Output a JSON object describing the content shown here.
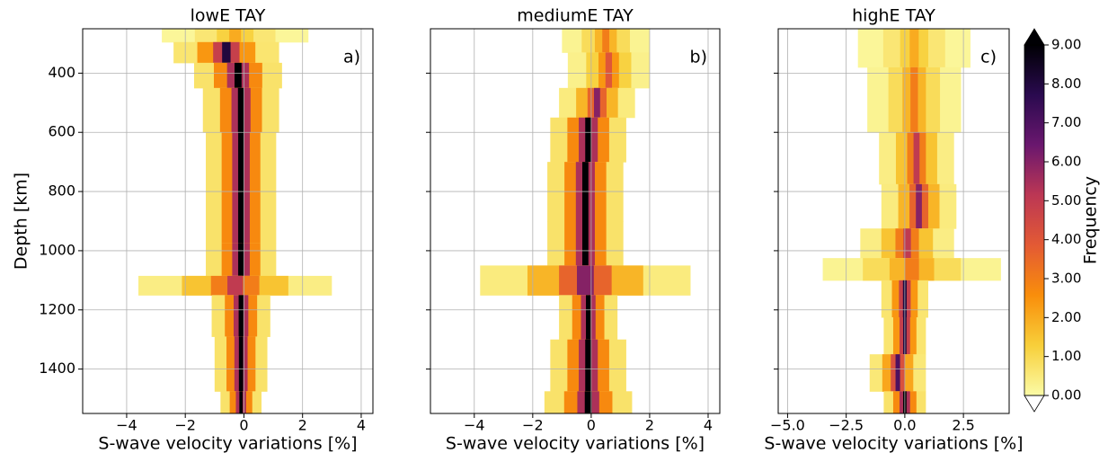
{
  "chart_data": [
    {
      "type": "density",
      "title": "lowE TAY",
      "tag": "a)",
      "xlabel": "S-wave velocity variations [%]",
      "ylabel": "Depth [km]",
      "xlim": [
        -5.5,
        4.4
      ],
      "xticks": [
        {
          "value": -4,
          "label": "−4"
        },
        {
          "value": -2,
          "label": "−2"
        },
        0,
        2,
        4
      ],
      "ylim": [
        250,
        1550
      ],
      "yticks": [
        400,
        600,
        800,
        1000,
        1200,
        1400
      ],
      "grid": true,
      "profile": {
        "depth": [
          260,
          330,
          400,
          500,
          700,
          900,
          1050,
          1120,
          1180,
          1400,
          1550
        ],
        "mode": [
          -0.3,
          -0.6,
          -0.2,
          -0.1,
          -0.1,
          -0.1,
          -0.1,
          -0.3,
          -0.1,
          -0.1,
          -0.1
        ],
        "spread": [
          2.5,
          1.8,
          1.5,
          1.3,
          1.2,
          1.2,
          1.2,
          3.3,
          1.0,
          0.9,
          0.7
        ],
        "peak": [
          2,
          8,
          9,
          9,
          9,
          9,
          9,
          5,
          9,
          9,
          9
        ]
      }
    },
    {
      "type": "density",
      "title": "mediumE TAY",
      "tag": "b)",
      "xlabel": "S-wave velocity variations [%]",
      "xlim": [
        -5.5,
        4.4
      ],
      "xticks": [
        {
          "value": -4,
          "label": "−4"
        },
        {
          "value": -2,
          "label": "−2"
        },
        0,
        2,
        4
      ],
      "ylim": [
        250,
        1550
      ],
      "yticks": [
        400,
        600,
        800,
        1000,
        1200,
        1400
      ],
      "grid": true,
      "profile": {
        "depth": [
          260,
          400,
          500,
          600,
          800,
          1000,
          1100,
          1200,
          1400,
          1550
        ],
        "mode": [
          0.5,
          0.6,
          0.2,
          -0.1,
          -0.2,
          -0.2,
          -0.2,
          -0.1,
          -0.1,
          -0.1
        ],
        "spread": [
          1.5,
          1.4,
          1.3,
          1.3,
          1.3,
          1.3,
          3.6,
          1.0,
          1.3,
          1.5
        ],
        "peak": [
          3,
          4,
          6,
          9,
          9,
          9,
          6,
          9,
          9,
          9
        ]
      }
    },
    {
      "type": "density",
      "title": "highE TAY",
      "tag": "c)",
      "xlabel": "S-wave velocity variations [%]",
      "xlim": [
        -5.4,
        4.45
      ],
      "xticks": [
        {
          "value": -5,
          "label": "−5.0"
        },
        {
          "value": -2.5,
          "label": "−2.5"
        },
        {
          "value": 0,
          "label": "0.0"
        },
        2.5
      ],
      "ylim": [
        250,
        1550
      ],
      "yticks": [
        400,
        600,
        800,
        1000,
        1200,
        1400
      ],
      "grid": true,
      "profile": {
        "depth": [
          260,
          500,
          700,
          850,
          1000,
          1050,
          1150,
          1300,
          1400,
          1550
        ],
        "mode": [
          0.4,
          0.4,
          0.5,
          0.6,
          0.1,
          0.3,
          0.0,
          0.0,
          -0.3,
          0.0
        ],
        "spread": [
          2.4,
          2.0,
          1.6,
          1.6,
          2.0,
          3.8,
          1.0,
          0.9,
          1.2,
          0.9
        ],
        "peak": [
          2,
          3,
          5,
          6,
          5,
          3,
          8,
          8,
          7,
          9
        ]
      }
    },
    {
      "type": "colorbar",
      "label": "Frequency",
      "zlim": [
        0,
        9
      ],
      "zticks": [
        {
          "value": 0,
          "label": "0.00"
        },
        {
          "value": 1,
          "label": "1.00"
        },
        {
          "value": 2,
          "label": "2.00"
        },
        {
          "value": 3,
          "label": "3.00"
        },
        {
          "value": 4,
          "label": "4.00"
        },
        {
          "value": 5,
          "label": "5.00"
        },
        {
          "value": 6,
          "label": "6.00"
        },
        {
          "value": 7,
          "label": "7.00"
        },
        {
          "value": 8,
          "label": "8.00"
        },
        {
          "value": 9,
          "label": "9.00"
        }
      ],
      "colormap": [
        "#fbfba6",
        "#f8cf3a",
        "#f98e0b",
        "#e35a34",
        "#bc3754",
        "#6a176e",
        "#2a0a4f",
        "#000004"
      ]
    }
  ]
}
